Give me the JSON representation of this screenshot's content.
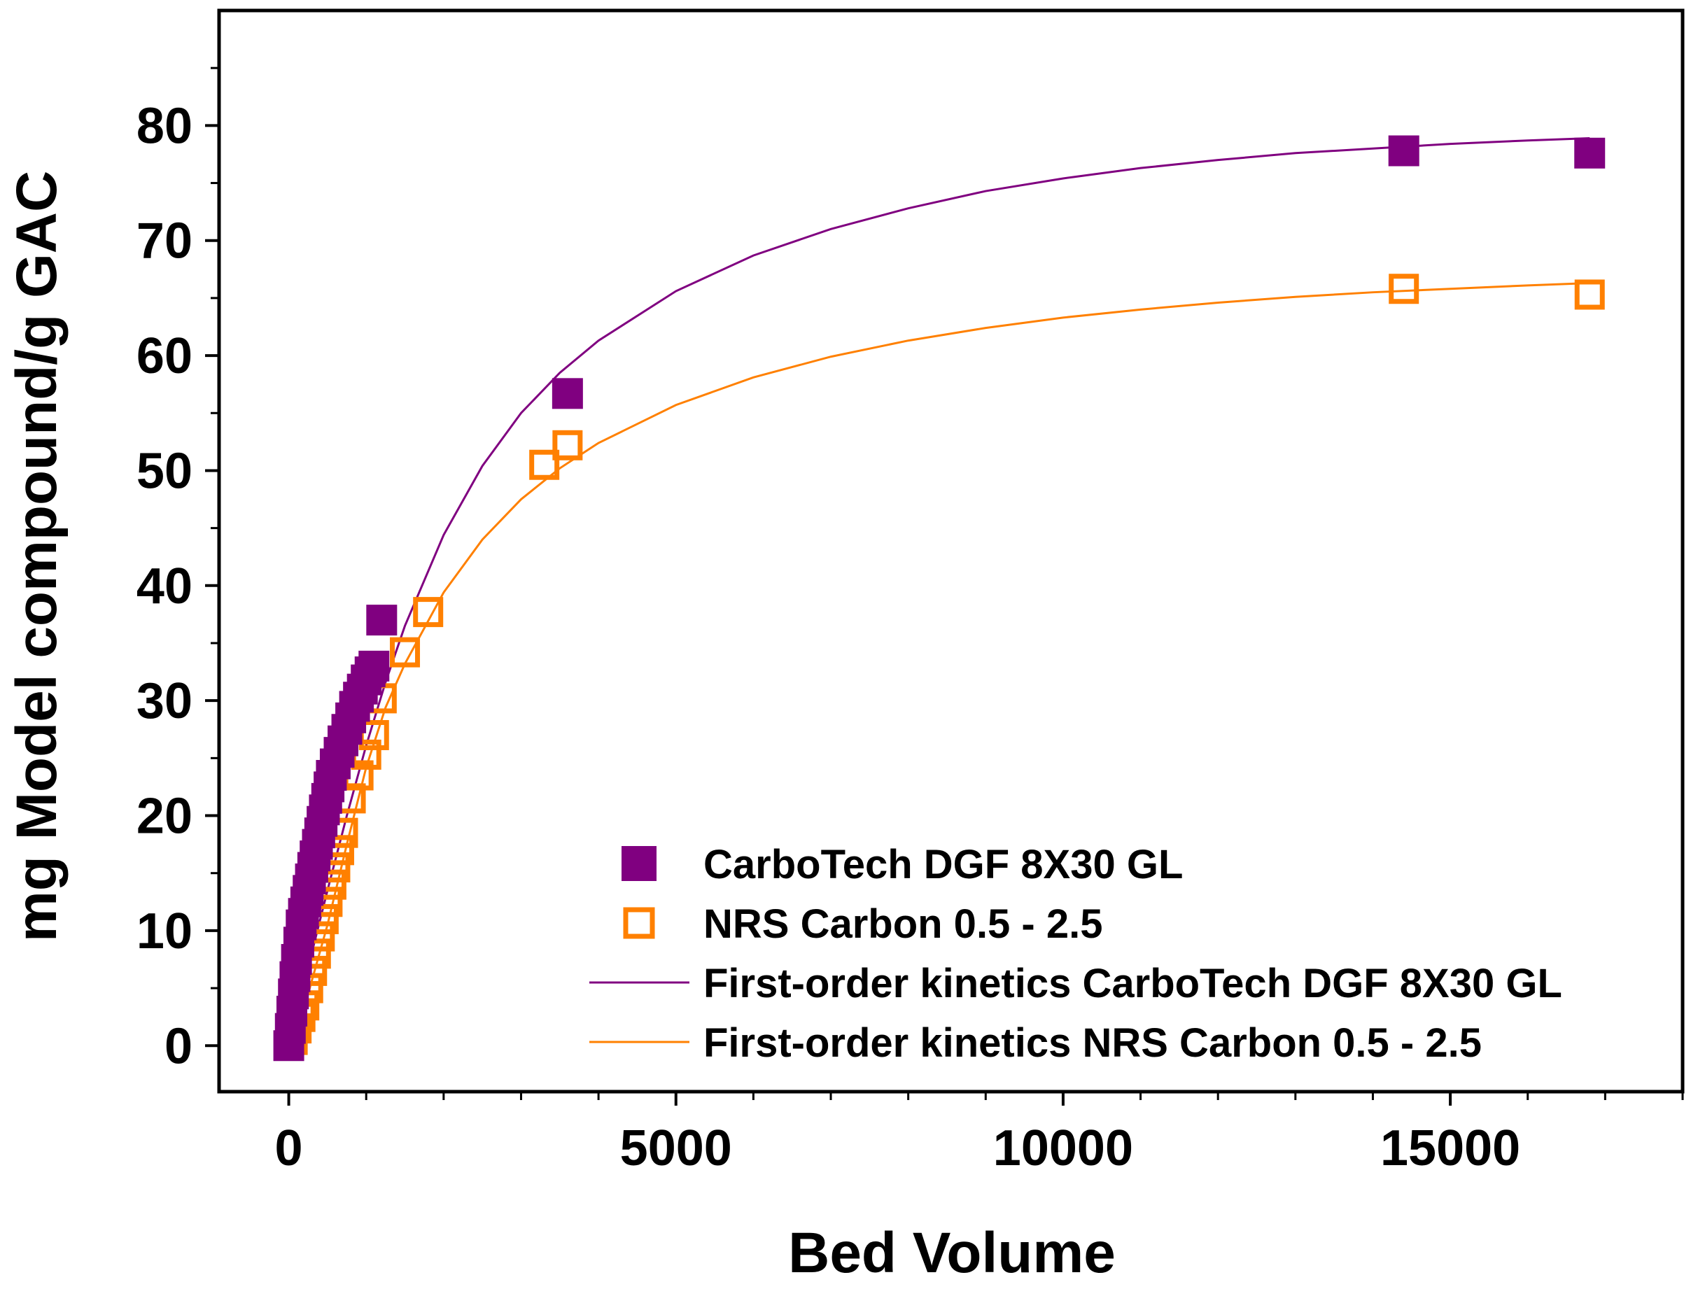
{
  "chart_data": {
    "type": "scatter",
    "title": "",
    "xlabel": "Bed Volume",
    "ylabel": "mg Model compound/g GAC",
    "xlim": [
      -900,
      18000
    ],
    "ylim": [
      -4,
      90
    ],
    "xticks": [
      0,
      5000,
      10000,
      15000
    ],
    "xtick_labels": [
      "0",
      "5000",
      "10000",
      "15000"
    ],
    "yticks": [
      0,
      10,
      20,
      30,
      40,
      50,
      60,
      70,
      80
    ],
    "ytick_labels": [
      "0",
      "10",
      "20",
      "30",
      "40",
      "50",
      "60",
      "70",
      "80"
    ],
    "grid": false,
    "legend_position": "bottom-right",
    "series": [
      {
        "name": "CarboTech DGF 8X30 GL",
        "kind": "markers",
        "marker": "filled-square",
        "color": "#800080",
        "x": [
          0,
          20,
          40,
          60,
          80,
          100,
          130,
          160,
          190,
          220,
          250,
          280,
          310,
          340,
          370,
          400,
          430,
          460,
          490,
          520,
          550,
          600,
          650,
          700,
          750,
          800,
          850,
          900,
          950,
          1000,
          1050,
          1100,
          1200,
          3600,
          14400,
          16800
        ],
        "y": [
          0,
          1.5,
          3,
          4.5,
          6,
          7.5,
          9,
          10.5,
          11.5,
          12.5,
          13.5,
          14.5,
          15.5,
          16.5,
          17.5,
          18.5,
          19.5,
          20.5,
          21.5,
          22.5,
          23.5,
          24.5,
          25.5,
          26.5,
          27.5,
          28.5,
          29.5,
          30.3,
          31,
          31.8,
          32.5,
          33,
          37,
          56.7,
          77.8,
          77.6
        ]
      },
      {
        "name": "NRS Carbon 0.5 - 2.5",
        "kind": "markers",
        "marker": "open-square",
        "color": "#FF8000",
        "x": [
          0,
          50,
          100,
          150,
          200,
          250,
          300,
          350,
          400,
          450,
          500,
          550,
          600,
          650,
          700,
          800,
          900,
          1000,
          1100,
          1200,
          1500,
          1800,
          3300,
          3600,
          14400,
          16800
        ],
        "y": [
          0,
          0.5,
          1.5,
          2.5,
          3.5,
          5,
          6.5,
          8,
          9.5,
          11,
          12.5,
          14,
          15.5,
          17,
          18.5,
          21.5,
          23.5,
          25.3,
          27,
          30.2,
          34.2,
          37.7,
          50.5,
          52.2,
          65.8,
          65.3
        ]
      },
      {
        "name": "First-order kinetics CarboTech DGF 8X30 GL",
        "kind": "line",
        "color": "#800080",
        "x": [
          0,
          250,
          500,
          750,
          1000,
          1250,
          1500,
          2000,
          2500,
          3000,
          3500,
          4000,
          5000,
          6000,
          7000,
          8000,
          9000,
          10000,
          11000,
          12000,
          13000,
          14000,
          15000,
          16000,
          16800
        ],
        "y": [
          0,
          6.8,
          13.5,
          20,
          26.1,
          31.6,
          36.5,
          44.4,
          50.4,
          55,
          58.5,
          61.3,
          65.6,
          68.7,
          71,
          72.8,
          74.3,
          75.4,
          76.3,
          77,
          77.6,
          78,
          78.4,
          78.7,
          78.9
        ]
      },
      {
        "name": "First-order kinetics NRS Carbon 0.5 - 2.5",
        "kind": "line",
        "color": "#FF8000",
        "x": [
          0,
          250,
          500,
          750,
          1000,
          1250,
          1500,
          2000,
          2500,
          3000,
          3500,
          4000,
          5000,
          6000,
          7000,
          8000,
          9000,
          10000,
          11000,
          12000,
          13000,
          14000,
          15000,
          16000,
          16800
        ],
        "y": [
          0,
          4.5,
          10.5,
          17.5,
          24.2,
          29.4,
          33.2,
          39.4,
          44,
          47.5,
          50.2,
          52.4,
          55.7,
          58.1,
          59.9,
          61.3,
          62.4,
          63.3,
          64,
          64.6,
          65.1,
          65.5,
          65.8,
          66.1,
          66.3
        ]
      }
    ]
  }
}
